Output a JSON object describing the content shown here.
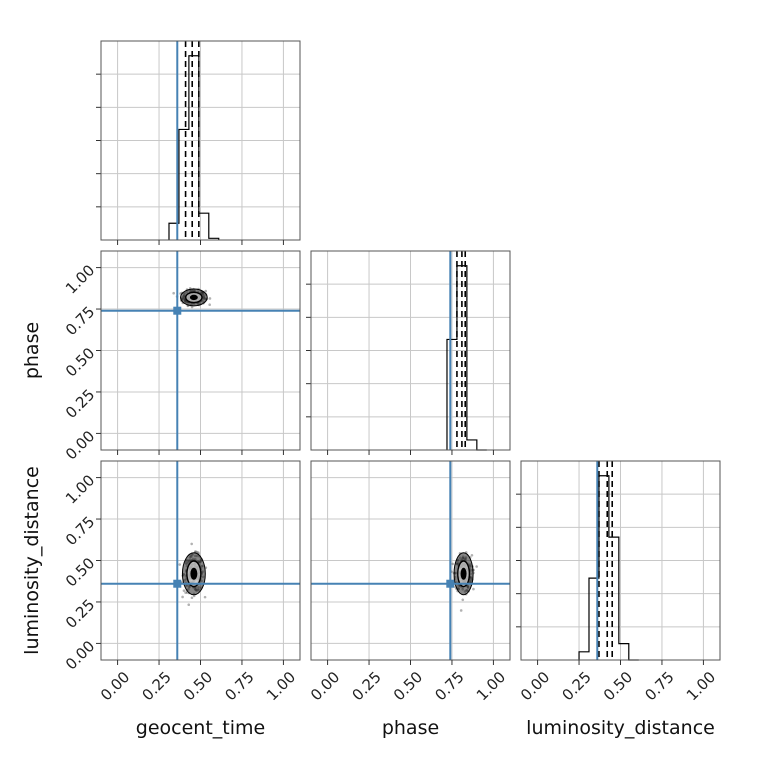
{
  "chart_data": {
    "type": "corner",
    "parameters": [
      "geocent_time",
      "phase",
      "luminosity_distance"
    ],
    "axis_range": [
      -0.1,
      1.1
    ],
    "tick_values": [
      0.0,
      0.25,
      0.5,
      0.75,
      1.0
    ],
    "tick_labels": [
      "0.00",
      "0.25",
      "0.50",
      "0.75",
      "1.00"
    ],
    "injection_values": {
      "geocent_time": 0.36,
      "phase": 0.74,
      "luminosity_distance": 0.36
    },
    "injection_color": "#4682b4",
    "grid": true,
    "histograms": [
      {
        "parameter": "geocent_time",
        "bin_edges": [
          0.31,
          0.37,
          0.43,
          0.49,
          0.55,
          0.61
        ],
        "density": [
          0.05,
          0.33,
          0.55,
          0.08,
          0.005
        ],
        "quantiles": [
          0.41,
          0.45,
          0.49
        ]
      },
      {
        "parameter": "phase",
        "bin_edges": [
          0.72,
          0.78,
          0.84,
          0.9,
          0.96
        ],
        "density": [
          0.33,
          0.55,
          0.03,
          0.0
        ],
        "quantiles": [
          0.78,
          0.81,
          0.83
        ]
      },
      {
        "parameter": "luminosity_distance",
        "bin_edges": [
          0.25,
          0.31,
          0.37,
          0.43,
          0.49,
          0.55,
          0.61
        ],
        "density": [
          0.02,
          0.2,
          0.45,
          0.3,
          0.04,
          0.0
        ],
        "quantiles": [
          0.37,
          0.42,
          0.45
        ]
      }
    ],
    "scatter_panels": [
      {
        "x": "geocent_time",
        "y": "phase",
        "center": [
          0.46,
          0.82
        ],
        "spread": [
          0.035,
          0.022
        ]
      },
      {
        "x": "geocent_time",
        "y": "luminosity_distance",
        "center": [
          0.46,
          0.42
        ],
        "spread": [
          0.03,
          0.055
        ]
      },
      {
        "x": "phase",
        "y": "luminosity_distance",
        "center": [
          0.82,
          0.42
        ],
        "spread": [
          0.025,
          0.055
        ]
      }
    ]
  }
}
